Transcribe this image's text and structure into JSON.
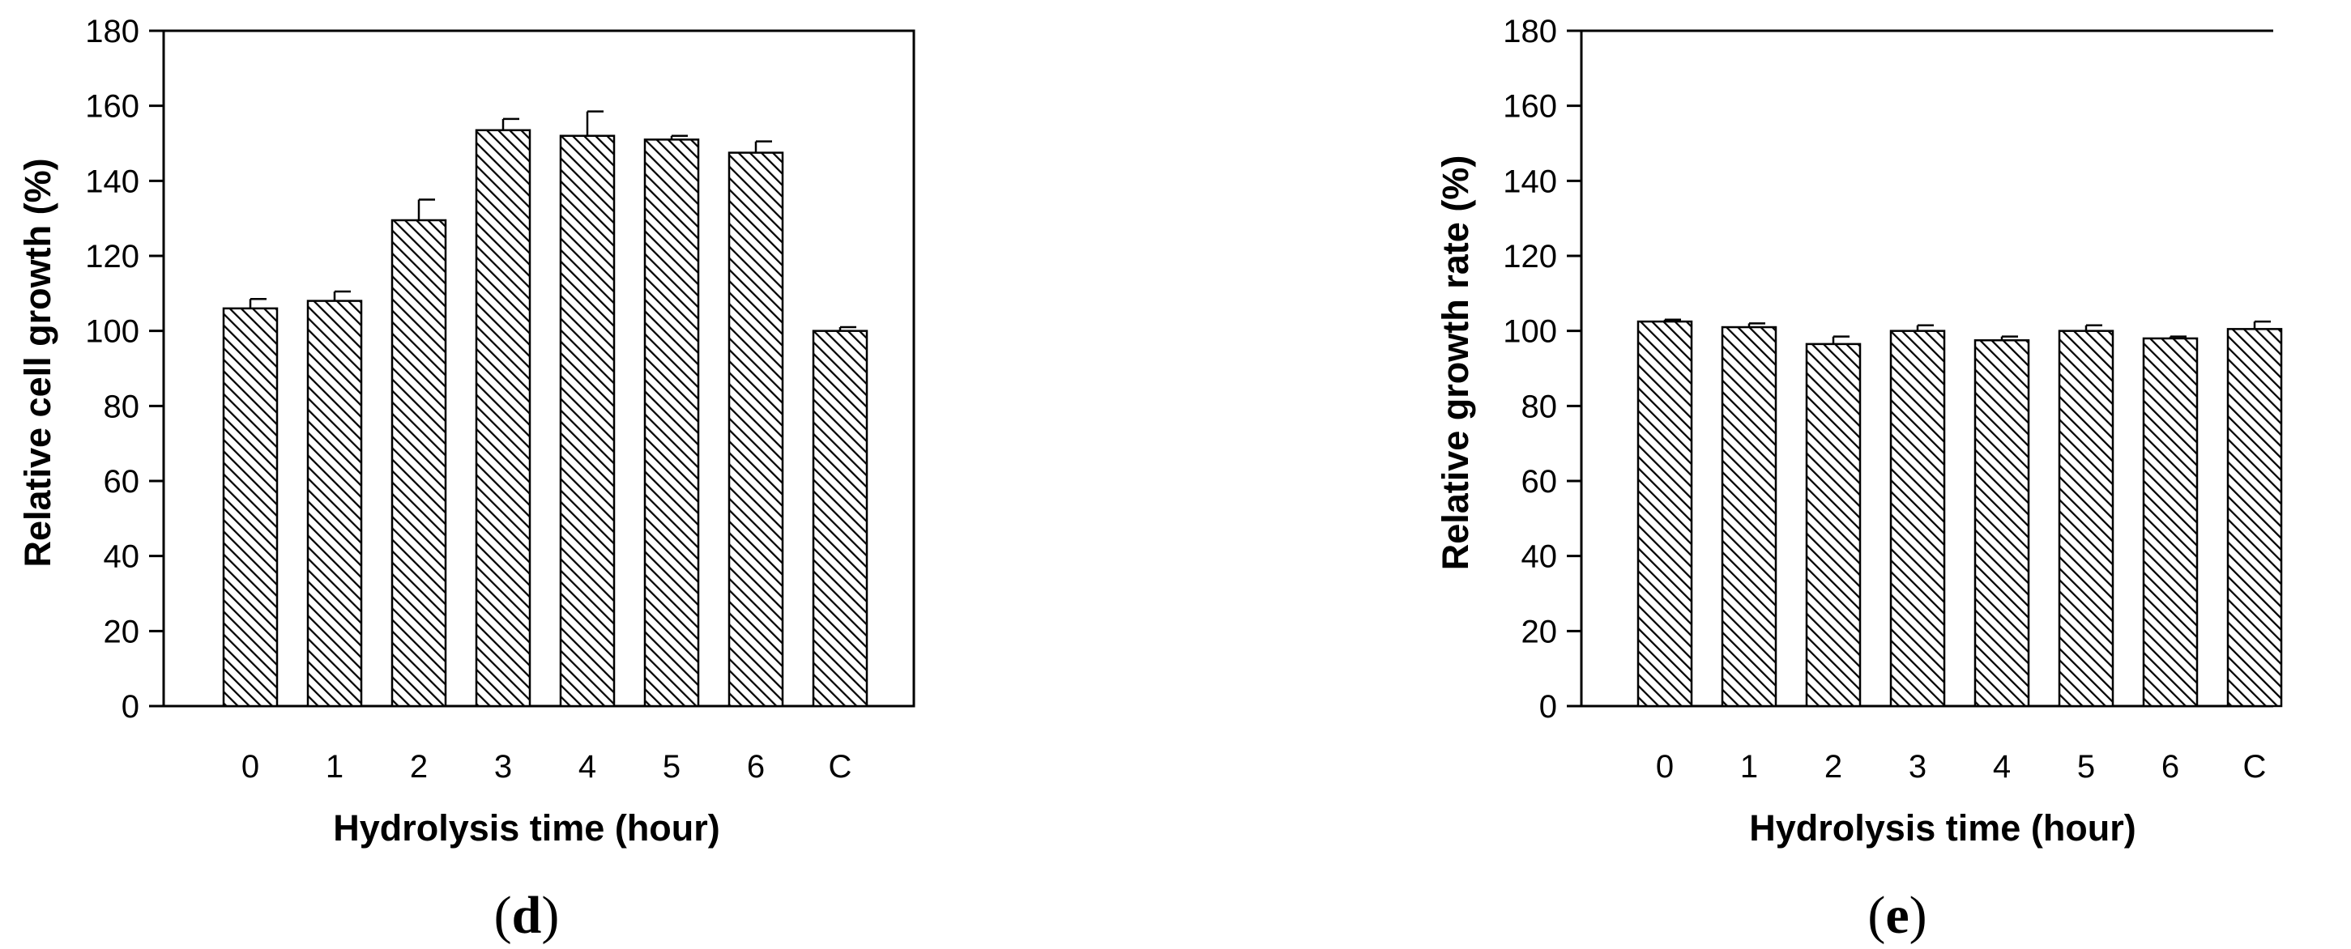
{
  "chart_data": [
    {
      "type": "bar",
      "panel_label": {
        "open": "(",
        "letter": "d",
        "close": ")"
      },
      "xlabel": "Hydrolysis time (hour)",
      "ylabel": "Relative cell growth (%)",
      "categories": [
        "0",
        "1",
        "2",
        "3",
        "4",
        "5",
        "6",
        "C"
      ],
      "values": [
        106,
        108,
        129.5,
        153.5,
        152,
        151,
        147.5,
        100
      ],
      "errors": [
        2.5,
        2.5,
        5.5,
        3,
        6.5,
        1,
        3,
        1
      ],
      "ylim": [
        0,
        180
      ],
      "yticks": [
        "0",
        "20",
        "40",
        "60",
        "80",
        "100",
        "120",
        "140",
        "160",
        "180"
      ],
      "bar_fill": "diagonal-hatch",
      "grid": false,
      "frame": "full-box"
    },
    {
      "type": "bar",
      "panel_label": {
        "open": "(",
        "letter": "e",
        "close": ")"
      },
      "xlabel": "Hydrolysis time (hour)",
      "ylabel": "Relative growth rate (%)",
      "categories": [
        "0",
        "1",
        "2",
        "3",
        "4",
        "5",
        "6",
        "C"
      ],
      "values": [
        102.5,
        101,
        96.5,
        100,
        97.5,
        100,
        98,
        100.5
      ],
      "errors": [
        0.5,
        1,
        2,
        1.5,
        1,
        1.5,
        0.5,
        2
      ],
      "ylim": [
        0,
        180
      ],
      "yticks": [
        "0",
        "20",
        "40",
        "60",
        "80",
        "100",
        "120",
        "140",
        "160",
        "180"
      ],
      "bar_fill": "diagonal-hatch",
      "grid": false,
      "frame": "left-top-bottom"
    }
  ]
}
